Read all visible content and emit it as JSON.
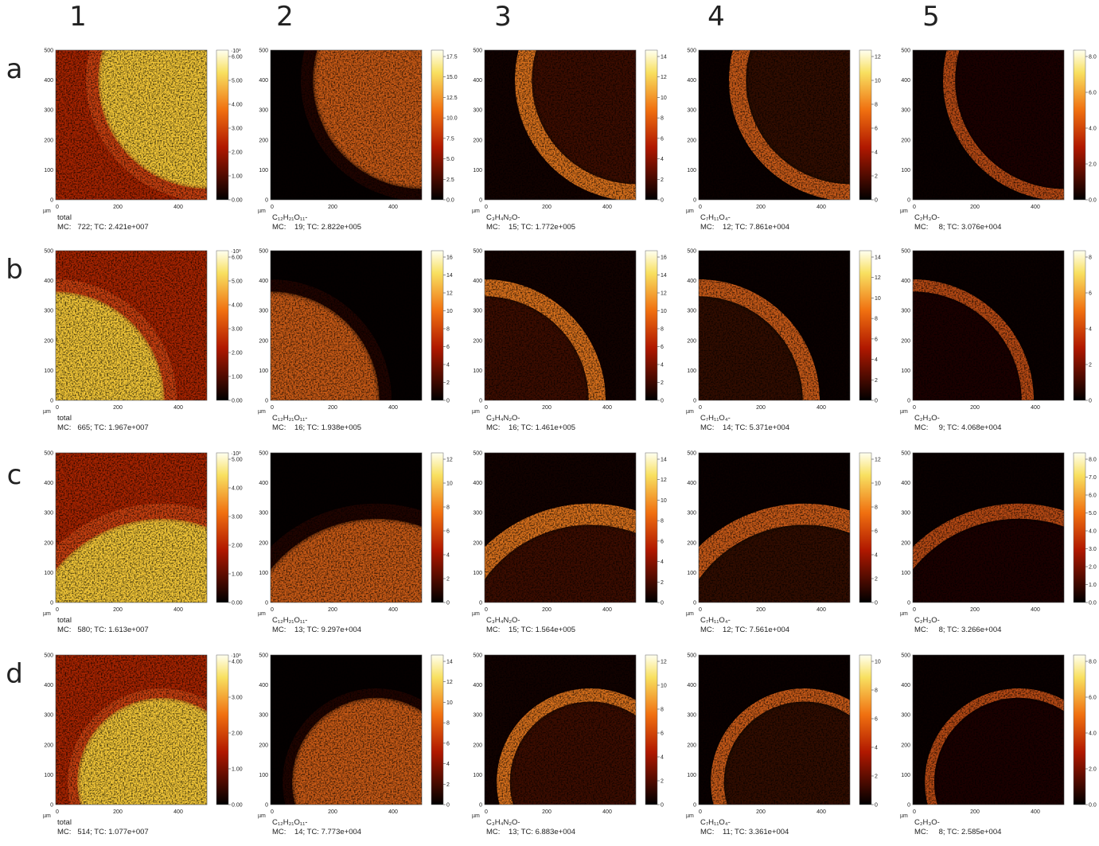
{
  "columns": [
    "1",
    "2",
    "3",
    "4",
    "5"
  ],
  "axes": {
    "unit": "µm",
    "xticks": [
      "0",
      "200",
      "400"
    ],
    "yticks": [
      "0",
      "100",
      "200",
      "300",
      "400",
      "500"
    ]
  },
  "rows": [
    {
      "label": "a",
      "panels": [
        {
          "species": "total",
          "stats": "MC:   722; TC: 2.421e+007",
          "scale_exponent": "·10³",
          "colorbar_ticks": [
            "0.00",
            "1.00",
            "2.00",
            "3.00",
            "4.00",
            "5.00",
            "6.00"
          ]
        },
        {
          "species": "C₁₂H₂₁O₁₁-",
          "stats": "MC:    19; TC: 2.822e+005",
          "colorbar_ticks": [
            "0.0",
            "2.5",
            "5.0",
            "7.5",
            "10.0",
            "12.5",
            "15.0",
            "17.5"
          ]
        },
        {
          "species": "C₃H₄N₂O-",
          "stats": "MC:    15; TC: 1.772e+005",
          "colorbar_ticks": [
            "0",
            "2",
            "4",
            "6",
            "8",
            "10",
            "12",
            "14"
          ]
        },
        {
          "species": "C₇H₁₁O₄-",
          "stats": "MC:    12; TC: 7.861e+004",
          "colorbar_ticks": [
            "0",
            "2",
            "4",
            "6",
            "8",
            "10",
            "12"
          ]
        },
        {
          "species": "C₂H₃O-",
          "stats": "MC:     8; TC: 3.076e+004",
          "colorbar_ticks": [
            "0.0",
            "2.0",
            "4.0",
            "6.0",
            "8.0"
          ]
        }
      ]
    },
    {
      "label": "b",
      "panels": [
        {
          "species": "total",
          "stats": "MC:   665; TC: 1.967e+007",
          "scale_exponent": "·10³",
          "colorbar_ticks": [
            "0.00",
            "1.00",
            "2.00",
            "3.00",
            "4.00",
            "5.00",
            "6.00"
          ]
        },
        {
          "species": "C₁₂H₂₁O₁₁-",
          "stats": "MC:    16; TC: 1.938e+005",
          "colorbar_ticks": [
            "0",
            "2",
            "4",
            "6",
            "8",
            "10",
            "12",
            "14",
            "16"
          ]
        },
        {
          "species": "C₃H₄N₂O-",
          "stats": "MC:    16; TC: 1.461e+005",
          "colorbar_ticks": [
            "0",
            "2",
            "4",
            "6",
            "8",
            "10",
            "12",
            "14",
            "16"
          ]
        },
        {
          "species": "C₇H₁₁O₄-",
          "stats": "MC:    14; TC: 5.371e+004",
          "colorbar_ticks": [
            "0",
            "2",
            "4",
            "6",
            "8",
            "10",
            "12",
            "14"
          ]
        },
        {
          "species": "C₂H₃O-",
          "stats": "MC:     9; TC: 4.068e+004",
          "colorbar_ticks": [
            "0",
            "2",
            "4",
            "6",
            "8"
          ]
        }
      ]
    },
    {
      "label": "c",
      "panels": [
        {
          "species": "total",
          "stats": "MC:   580; TC: 1.613e+007",
          "scale_exponent": "·10³",
          "colorbar_ticks": [
            "0.00",
            "1.00",
            "2.00",
            "3.00",
            "4.00",
            "5.00"
          ]
        },
        {
          "species": "C₁₂H₂₁O₁₁-",
          "stats": "MC:    13; TC: 9.297e+004",
          "colorbar_ticks": [
            "0",
            "2",
            "4",
            "6",
            "8",
            "10",
            "12"
          ]
        },
        {
          "species": "C₃H₄N₂O-",
          "stats": "MC:    15; TC: 1.564e+005",
          "colorbar_ticks": [
            "0",
            "2",
            "4",
            "6",
            "8",
            "10",
            "12",
            "14"
          ]
        },
        {
          "species": "C₇H₁₁O₄-",
          "stats": "MC:    12; TC: 7.561e+004",
          "colorbar_ticks": [
            "0",
            "2",
            "4",
            "6",
            "8",
            "10",
            "12"
          ]
        },
        {
          "species": "C₂H₃O-",
          "stats": "MC:     8; TC: 3.266e+004",
          "colorbar_ticks": [
            "0.0",
            "1.0",
            "2.0",
            "3.0",
            "4.0",
            "5.0",
            "6.0",
            "7.0",
            "8.0"
          ]
        }
      ]
    },
    {
      "label": "d",
      "panels": [
        {
          "species": "total",
          "stats": "MC:   514; TC: 1.077e+007",
          "scale_exponent": "·10³",
          "colorbar_ticks": [
            "0.00",
            "1.00",
            "2.00",
            "3.00",
            "4.00"
          ]
        },
        {
          "species": "C₁₂H₂₁O₁₁-",
          "stats": "MC:    14; TC: 7.773e+004",
          "colorbar_ticks": [
            "0",
            "2",
            "4",
            "6",
            "8",
            "10",
            "12",
            "14"
          ]
        },
        {
          "species": "C₃H₄N₂O-",
          "stats": "MC:    13; TC: 6.883e+004",
          "colorbar_ticks": [
            "0",
            "2",
            "4",
            "6",
            "8",
            "10",
            "12"
          ]
        },
        {
          "species": "C₇H₁₁O₄-",
          "stats": "MC:    11; TC: 3.361e+004",
          "colorbar_ticks": [
            "0",
            "2",
            "4",
            "6",
            "8",
            "10"
          ]
        },
        {
          "species": "C₂H₃O-",
          "stats": "MC:     8; TC: 2.585e+004",
          "colorbar_ticks": [
            "0.0",
            "2.0",
            "4.0",
            "6.0",
            "8.0"
          ]
        }
      ]
    }
  ]
}
